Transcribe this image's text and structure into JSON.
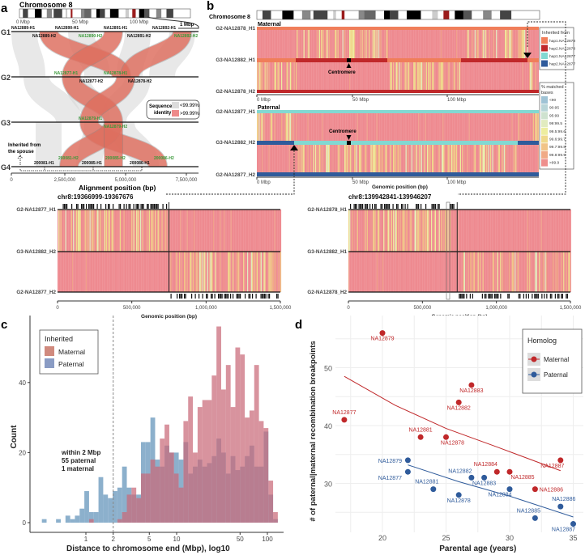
{
  "panels": {
    "a": {
      "letter": "a",
      "chrom_title": "Chromosome 8",
      "ideo_ticks": [
        "0 Mbp",
        "50 Mbp",
        "100 Mbp"
      ],
      "zoom_label": "1 Mbp",
      "gens": [
        "G1",
        "G2",
        "G3",
        "G4"
      ],
      "haplotypes": [
        {
          "t": "NA12889-H1",
          "g": false
        },
        {
          "t": "NA12890-H1",
          "g": false
        },
        {
          "t": "NA12891-H1",
          "g": false
        },
        {
          "t": "NA12892-H1",
          "g": false
        },
        {
          "t": "NA12889-H2",
          "g": false
        },
        {
          "t": "NA12890-H2",
          "g": true
        },
        {
          "t": "NA12891-H2",
          "g": false
        },
        {
          "t": "NA12892-H2",
          "g": true
        },
        {
          "t": "NA12877-H1",
          "g": true
        },
        {
          "t": "NA12878-H1",
          "g": true
        },
        {
          "t": "NA12877-H2",
          "g": false
        },
        {
          "t": "NA12878-H2",
          "g": false
        },
        {
          "t": "NA12879-H1",
          "g": true
        },
        {
          "t": "NA12879-H2",
          "g": true
        },
        {
          "t": "200081-H1",
          "g": false
        },
        {
          "t": "200081-H2",
          "g": true
        },
        {
          "t": "200085-H1",
          "g": false
        },
        {
          "t": "200085-H2",
          "g": true
        },
        {
          "t": "200086-H1",
          "g": false
        },
        {
          "t": "200086-H2",
          "g": true
        }
      ],
      "spouse_note": [
        "Inherited from",
        "the spouse"
      ],
      "legend": {
        "title": [
          "Sequence",
          "identity"
        ],
        "low": "<99.99%",
        "high": ">99.99%",
        "low_color": "#dcdcdc",
        "high_color": "#ee8a8a"
      },
      "x_ticks": [
        "0",
        "2,500,000",
        "5,000,000",
        "7,500,000"
      ],
      "xlabel": "Alignment position (bp)"
    },
    "b": {
      "letter": "b",
      "chrom_title": "Chromosome 8",
      "maternal": "Maternal",
      "paternal": "Paternal",
      "centromere": "Centromere",
      "maternal_rows": [
        "G2-NA12878_H1",
        "G3-NA12882_H1",
        "G2-NA12878_H2"
      ],
      "paternal_rows": [
        "G2-NA12877_H1",
        "G3-NA12882_H2",
        "G2-NA12877_H2"
      ],
      "x_ticks": [
        "0 Mbp",
        "50 Mbp",
        "100 Mbp"
      ],
      "xlabel": "Genomic position (bp)",
      "inherited_legend": {
        "title": "Inherited from",
        "items": [
          {
            "label": "hap1.NA12878",
            "color": "#f07e5a"
          },
          {
            "label": "hap2.NA12878",
            "color": "#c0282a"
          },
          {
            "label": "hap1.NA12877",
            "color": "#82d8d2"
          },
          {
            "label": "hap2.NA12877",
            "color": "#2f5b9b"
          }
        ]
      },
      "match_legend": {
        "title": [
          "% matched",
          "bases"
        ],
        "items": [
          {
            "label": "<90",
            "color": "#9fc3d5"
          },
          {
            "label": "90:95",
            "color": "#b8d5d8"
          },
          {
            "label": "95:99",
            "color": "#cee2cf"
          },
          {
            "label": "99:99.5",
            "color": "#e1ebbf"
          },
          {
            "label": "99.5:99.6",
            "color": "#eded9f"
          },
          {
            "label": "99.6:99.7",
            "color": "#efd98b"
          },
          {
            "label": "99.7:99.8",
            "color": "#f1c487"
          },
          {
            "label": "99.8:99.9",
            "color": "#f0aa86"
          },
          {
            "label": ">99.9",
            "color": "#ee8e8c"
          }
        ]
      },
      "zoom_left": {
        "title": "chr8:19366999-19367676",
        "rows": [
          "G2-NA12877_H1",
          "G3-NA12882_H2",
          "G2-NA12877_H2"
        ]
      },
      "zoom_right": {
        "title": "chr8:139942841-139946207",
        "rows": [
          "G2-NA12878_H1",
          "G3-NA12882_H1",
          "G2-NA12878_H2"
        ]
      },
      "zoom_ticks": [
        "0",
        "500,000",
        "1,000,000",
        "1,500,000"
      ]
    }
  },
  "chart_data": [
    {
      "panel": "c",
      "type": "bar",
      "title": "",
      "xlabel": "Distance to chromosome end (Mbp), log10",
      "ylabel": "Count",
      "x_scale": "log10",
      "x_ticks": [
        1,
        2,
        5,
        10,
        50,
        100
      ],
      "y_ticks": [
        0,
        20,
        40
      ],
      "ylim": [
        0,
        57
      ],
      "bin_start_log10": -0.485,
      "bin_width_log10": 0.052,
      "legend": {
        "title": "Inherited",
        "items": [
          {
            "name": "Maternal",
            "color": "#d08a7e"
          },
          {
            "name": "Paternal",
            "color": "#8a9cc4"
          }
        ]
      },
      "annotation": [
        "within 2 Mbp",
        "55 paternal",
        "1 maternal"
      ],
      "vline": 2,
      "series": [
        {
          "name": "Paternal",
          "color": "#7fa7c7",
          "values": [
            1,
            0,
            0,
            1,
            0,
            2,
            1,
            2,
            4,
            9,
            3,
            3,
            13,
            8,
            7,
            9,
            10,
            16,
            10,
            8,
            8,
            23,
            23,
            30,
            18,
            16,
            22,
            20,
            20,
            18,
            23,
            14,
            16,
            18,
            16,
            17,
            19,
            24,
            20,
            14,
            19,
            15,
            16,
            19,
            22,
            16,
            16,
            26,
            8,
            1
          ]
        },
        {
          "name": "Maternal",
          "color": "#c96a78",
          "values": [
            0,
            0,
            0,
            0,
            0,
            0,
            0,
            0,
            0,
            0,
            1,
            0,
            0,
            0,
            0,
            0,
            1,
            3,
            8,
            10,
            7,
            14,
            14,
            18,
            16,
            24,
            28,
            20,
            14,
            10,
            29,
            36,
            20,
            33,
            35,
            35,
            42,
            56,
            38,
            45,
            33,
            50,
            48,
            30,
            32,
            45,
            29,
            27,
            12,
            3
          ]
        }
      ]
    },
    {
      "panel": "d",
      "type": "scatter",
      "xlabel": "Parental age (years)",
      "ylabel": "# of paternal|maternal recombination breakpoints",
      "x_ticks": [
        20,
        25,
        30,
        35
      ],
      "y_ticks": [
        30,
        40,
        50
      ],
      "xlim": [
        16,
        36
      ],
      "ylim": [
        21,
        58
      ],
      "legend": {
        "title": "Homolog",
        "items": [
          {
            "name": "Maternal",
            "color": "#c0282a"
          },
          {
            "name": "Paternal",
            "color": "#2f5b9b"
          }
        ]
      },
      "series": [
        {
          "name": "Maternal",
          "color": "#c0282a",
          "points": [
            {
              "label": "NA12879",
              "x": 20,
              "y": 56
            },
            {
              "label": "NA12883",
              "x": 27,
              "y": 47
            },
            {
              "label": "NA12882",
              "x": 26,
              "y": 44
            },
            {
              "label": "NA12877",
              "x": 17,
              "y": 41
            },
            {
              "label": "NA12881",
              "x": 23,
              "y": 38
            },
            {
              "label": "NA12878",
              "x": 25,
              "y": 38
            },
            {
              "label": "NA12884",
              "x": 29,
              "y": 32
            },
            {
              "label": "NA12885",
              "x": 30,
              "y": 32
            },
            {
              "label": "NA12887",
              "x": 34,
              "y": 34
            },
            {
              "label": "NA12886",
              "x": 32,
              "y": 29
            }
          ],
          "trend": [
            [
              17,
              48.5
            ],
            [
              21,
              43.5
            ],
            [
              25,
              39.5
            ],
            [
              29,
              36.3
            ],
            [
              34,
              32.2
            ]
          ]
        },
        {
          "name": "Paternal",
          "color": "#2f5b9b",
          "points": [
            {
              "label": "NA12879",
              "x": 22,
              "y": 34
            },
            {
              "label": "NA12877",
              "x": 22,
              "y": 32
            },
            {
              "label": "NA12881",
              "x": 24,
              "y": 29
            },
            {
              "label": "NA12878",
              "x": 26,
              "y": 28
            },
            {
              "label": "NA12882",
              "x": 27,
              "y": 31
            },
            {
              "label": "NA12883",
              "x": 28,
              "y": 31
            },
            {
              "label": "NA12884",
              "x": 30,
              "y": 29
            },
            {
              "label": "NA12885",
              "x": 32,
              "y": 24
            },
            {
              "label": "NA12886",
              "x": 34,
              "y": 26
            },
            {
              "label": "NA12887",
              "x": 35,
              "y": 23
            }
          ],
          "trend": [
            [
              22,
              33.2
            ],
            [
              26,
              30.3
            ],
            [
              30,
              27.8
            ],
            [
              35,
              24.2
            ]
          ]
        }
      ]
    }
  ]
}
